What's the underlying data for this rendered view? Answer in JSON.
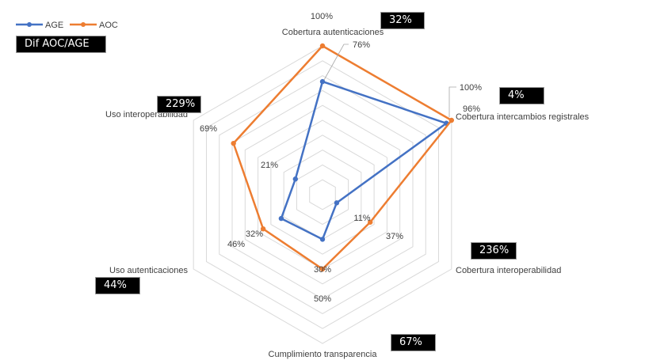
{
  "chart_data": {
    "type": "radar",
    "title": "",
    "categories": [
      "Cobertura autenticaciones",
      "Cobertura intercambios registrales",
      "Cobertura interoperabilidad",
      "Cumplimiento transparencia",
      "Uso autenticaciones",
      "Uso interoperabilidad"
    ],
    "series": [
      {
        "name": "AGE",
        "color": "#4472C4",
        "values": [
          76,
          96,
          11,
          30,
          32,
          21
        ],
        "labels": [
          "76%",
          "96%",
          "11%",
          "30%",
          "32%",
          "21%"
        ]
      },
      {
        "name": "AOC",
        "color": "#ED7D31",
        "values": [
          100,
          100,
          37,
          50,
          46,
          69
        ],
        "labels": [
          "100%",
          "100%",
          "37%",
          "50%",
          "46%",
          "69%"
        ]
      }
    ],
    "rlim": [
      0,
      100
    ],
    "grid_rings": 10,
    "legend": "top-left",
    "annotation_title": "Dif AOC/AGE",
    "differences": [
      "32%",
      "4%",
      "236%",
      "67%",
      "44%",
      "229%"
    ]
  }
}
